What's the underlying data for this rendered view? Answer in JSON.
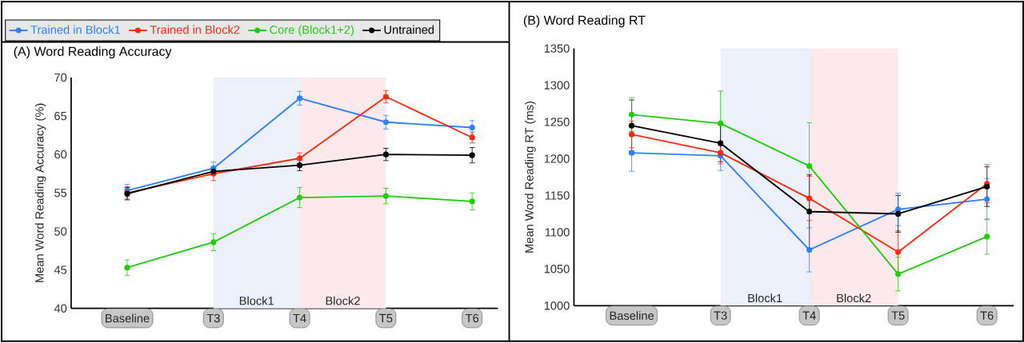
{
  "chart_data": [
    {
      "type": "line",
      "title": "(A) Word Reading Accuracy",
      "ylabel": "Mean Word Reading Accuracy (%)",
      "categories": [
        "Baseline",
        "T3",
        "T4",
        "T5",
        "T6"
      ],
      "ylim": [
        40,
        70
      ],
      "yticks": [
        40,
        45,
        50,
        55,
        60,
        65,
        70
      ],
      "bands": [
        {
          "axis": "x",
          "from": "T3",
          "to": "T4",
          "label": "Block1",
          "color": "#ebf0fb"
        },
        {
          "axis": "x",
          "from": "T4",
          "to": "T5",
          "label": "Block2",
          "color": "#fbe9ec"
        }
      ],
      "marker": "circle",
      "legend": "top",
      "series": [
        {
          "name": "Trained in Block1",
          "color": "#2f80ff",
          "values": [
            55.3,
            58.2,
            67.3,
            64.2,
            63.5
          ],
          "errors": [
            0.8,
            0.8,
            0.9,
            0.9,
            0.9
          ]
        },
        {
          "name": "Trained in Block2",
          "color": "#ff2a10",
          "values": [
            55.0,
            57.5,
            59.5,
            67.5,
            62.2
          ],
          "errors": [
            0.8,
            0.9,
            0.7,
            0.8,
            0.7
          ]
        },
        {
          "name": "Core (Block1+2)",
          "color": "#22cc11",
          "values": [
            45.3,
            48.6,
            54.4,
            54.6,
            53.9
          ],
          "errors": [
            1.0,
            1.1,
            1.3,
            1.0,
            1.1
          ]
        },
        {
          "name": "Untrained",
          "color": "#000000",
          "values": [
            54.9,
            57.8,
            58.6,
            60.0,
            59.9
          ],
          "errors": [
            0.8,
            0.4,
            0.7,
            0.8,
            1.0
          ]
        }
      ]
    },
    {
      "type": "line",
      "title": "(B) Word Reading RT",
      "ylabel": "Mean Word Reading RT (ms)",
      "categories": [
        "Baseline",
        "T3",
        "T4",
        "T5",
        "T6"
      ],
      "ylim": [
        1000,
        1350
      ],
      "yticks": [
        1000,
        1050,
        1100,
        1150,
        1200,
        1250,
        1300,
        1350
      ],
      "bands": [
        {
          "axis": "x",
          "from": "T3",
          "to": "T4",
          "label": "Block1",
          "color": "#ebf0fb"
        },
        {
          "axis": "x",
          "from": "T4",
          "to": "T5",
          "label": "Block2",
          "color": "#fbe9ec"
        }
      ],
      "marker": "circle",
      "series": [
        {
          "color": "#2f80ff",
          "values": [
            1208,
            1204,
            1076,
            1131,
            1145
          ],
          "errors": [
            25,
            20,
            30,
            22,
            28
          ]
        },
        {
          "color": "#ff2a10",
          "values": [
            1233,
            1208,
            1146,
            1073,
            1166
          ],
          "errors": [
            18,
            15,
            30,
            29,
            26
          ]
        },
        {
          "color": "#22cc11",
          "values": [
            1260,
            1248,
            1190,
            1043,
            1094
          ],
          "errors": [
            23,
            44,
            59,
            23,
            24
          ]
        },
        {
          "color": "#000000",
          "values": [
            1245,
            1221,
            1128,
            1125,
            1162
          ],
          "errors": [
            35,
            25,
            50,
            25,
            27
          ]
        }
      ]
    }
  ]
}
